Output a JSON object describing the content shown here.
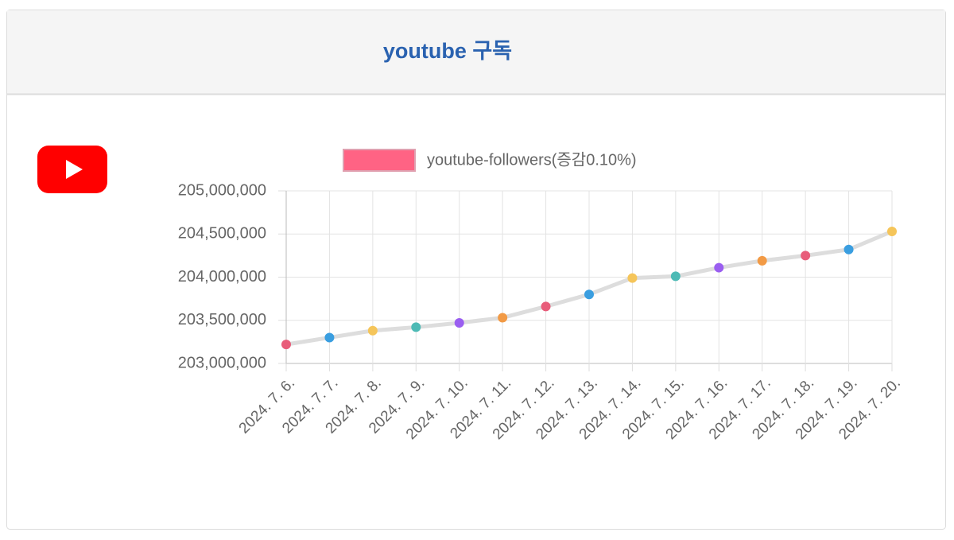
{
  "header": {
    "title": "youtube 구독"
  },
  "chart_data": {
    "type": "line",
    "categories": [
      "2024. 7. 6.",
      "2024. 7. 7.",
      "2024. 7. 8.",
      "2024. 7. 9.",
      "2024. 7. 10.",
      "2024. 7. 11.",
      "2024. 7. 12.",
      "2024. 7. 13.",
      "2024. 7. 14.",
      "2024. 7. 15.",
      "2024. 7. 16.",
      "2024. 7. 17.",
      "2024. 7. 18.",
      "2024. 7. 19.",
      "2024. 7. 20."
    ],
    "series": [
      {
        "name": "youtube-followers(증감0.10%)",
        "color": "#ff6384",
        "line_color": "#dddddd",
        "values": [
          203220000,
          203300000,
          203380000,
          203420000,
          203470000,
          203530000,
          203660000,
          203800000,
          203990000,
          204010000,
          204110000,
          204190000,
          204250000,
          204320000,
          204530000
        ],
        "point_colors": [
          "#e85d7a",
          "#3a9ee0",
          "#f5c55a",
          "#4dbab5",
          "#9a5ef0",
          "#f29a45",
          "#e85d7a",
          "#3a9ee0",
          "#f5c55a",
          "#4dbab5",
          "#9a5ef0",
          "#f29a45",
          "#e85d7a",
          "#3a9ee0",
          "#f5c55a"
        ]
      }
    ],
    "ylim": [
      203000000,
      205000000
    ],
    "yticks": [
      {
        "value": 203000000,
        "label": "203,000,000"
      },
      {
        "value": 203500000,
        "label": "203,500,000"
      },
      {
        "value": 204000000,
        "label": "204,000,000"
      },
      {
        "value": 204500000,
        "label": "204,500,000"
      },
      {
        "value": 205000000,
        "label": "205,000,000"
      }
    ],
    "grid": true,
    "legend": "top"
  }
}
